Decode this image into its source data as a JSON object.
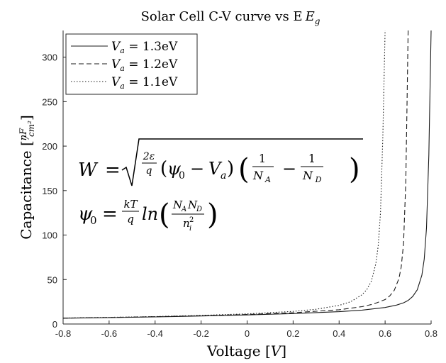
{
  "chart_data": {
    "type": "line",
    "title": "Solar Cell C-V curve vs E",
    "title_subscript_symbol": "E",
    "title_subscript": "g",
    "xlabel": "Voltage [V]",
    "ylabel": "Capacitance [nF/cm²]",
    "xlim": [
      -0.8,
      0.8
    ],
    "ylim": [
      0,
      330
    ],
    "xticks": [
      "-0.8",
      "-0.6",
      "-0.4",
      "-0.2",
      "0",
      "0.2",
      "0.4",
      "0.6",
      "0.8"
    ],
    "yticks": [
      "0",
      "50",
      "100",
      "150",
      "200",
      "250",
      "300"
    ],
    "grid": false,
    "legend_position": "top-left",
    "series": [
      {
        "name": "V_a = 1.3eV",
        "legend_label": "Va = 1.3eV",
        "style": "solid",
        "x": [
          -0.8,
          -0.6,
          -0.4,
          -0.2,
          0,
          0.2,
          0.4,
          0.5,
          0.6,
          0.65,
          0.68,
          0.7,
          0.72,
          0.74,
          0.76,
          0.77,
          0.78,
          0.79,
          0.795,
          0.8
        ],
        "y": [
          6.5,
          7.2,
          8.0,
          9.0,
          10.2,
          11.7,
          13.9,
          15.6,
          18.6,
          21.3,
          23.8,
          26.5,
          30.9,
          38.5,
          55.0,
          73.0,
          108.0,
          190.0,
          260.0,
          330.0
        ]
      },
      {
        "name": "V_a = 1.2eV",
        "legend_label": "Va = 1.2eV",
        "style": "dashed",
        "x": [
          -0.8,
          -0.6,
          -0.4,
          -0.2,
          0,
          0.2,
          0.4,
          0.5,
          0.55,
          0.6,
          0.62,
          0.64,
          0.66,
          0.67,
          0.68,
          0.69,
          0.695,
          0.7
        ],
        "y": [
          6.6,
          7.3,
          8.2,
          9.3,
          10.7,
          12.7,
          16.0,
          19.5,
          22.5,
          27.5,
          31.5,
          38.0,
          51.0,
          64.0,
          90.0,
          160.0,
          240.0,
          330.0
        ]
      },
      {
        "name": "V_a = 1.1eV",
        "legend_label": "Va = 1.1eV",
        "style": "dotted",
        "x": [
          -0.8,
          -0.6,
          -0.4,
          -0.2,
          0,
          0.2,
          0.3,
          0.4,
          0.45,
          0.5,
          0.52,
          0.54,
          0.56,
          0.57,
          0.58,
          0.59,
          0.595,
          0.6
        ],
        "y": [
          6.7,
          7.5,
          8.4,
          9.7,
          11.4,
          14.2,
          16.6,
          21.0,
          25.0,
          33.0,
          38.5,
          48.0,
          68.0,
          88.0,
          125.0,
          210.0,
          270.0,
          330.0
        ]
      }
    ],
    "annotations": [
      {
        "id": "W",
        "lhs": "W",
        "equals": "=",
        "coef_num": "2ε",
        "coef_den": "q",
        "psi": "ψ",
        "psi_sub": "0",
        "minus": "−",
        "va": "V",
        "va_sub": "a",
        "frac1_num": "1",
        "frac1_den": "N",
        "frac1_den_sub": "A",
        "frac2_num": "1",
        "frac2_den": "N",
        "frac2_den_sub": "D"
      },
      {
        "id": "psi0",
        "lhs": "ψ",
        "lhs_sub": "0",
        "equals": "=",
        "kt": "kT",
        "q": "q",
        "ln": "ln",
        "na": "N",
        "na_sub": "A",
        "nd": "N",
        "nd_sub": "D",
        "ni": "n",
        "ni_sub": "i",
        "ni_sup": "2"
      }
    ]
  }
}
